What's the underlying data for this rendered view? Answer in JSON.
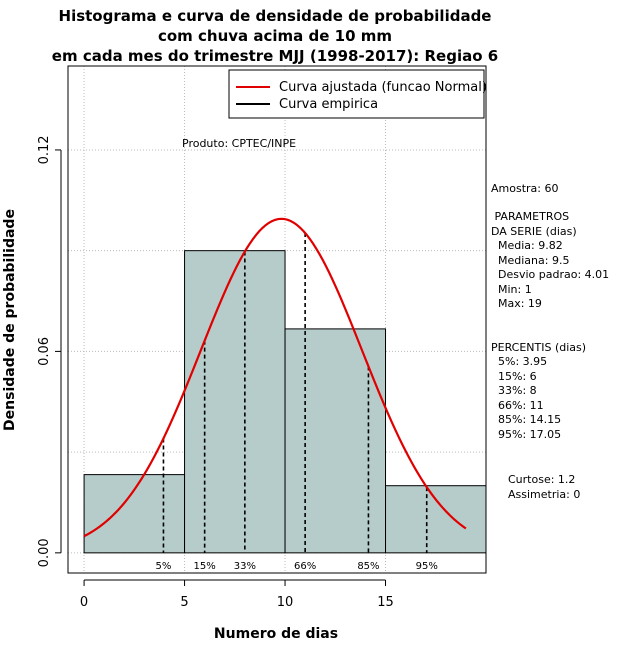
{
  "chart_data": {
    "type": "bar",
    "title_lines": [
      "Histograma e curva de densidade de probabilidade",
      "com chuva acima de 10 mm",
      "em cada mes do trimestre MJJ (1998-2017): Regiao 6"
    ],
    "xlabel": "Numero de dias",
    "ylabel": "Densidade de probabilidade",
    "xlim": [
      -0.8,
      20
    ],
    "ylim": [
      -0.006,
      0.145
    ],
    "x_ticks": [
      "0",
      "5",
      "10",
      "15"
    ],
    "x_tick_values": [
      0,
      5,
      10,
      15
    ],
    "y_ticks": [
      "0.00",
      "0.06",
      "0.12"
    ],
    "y_tick_values": [
      0,
      0.06,
      0.12
    ],
    "grid": true,
    "legend_position": "top-right",
    "legend": [
      {
        "label": "Curva ajustada (funcao Normal)",
        "color": "#e00000"
      },
      {
        "label": "Curva empirica",
        "color": "#000000"
      }
    ],
    "watermark": "Produto: CPTEC/INPE",
    "bins": [
      {
        "x0": 0,
        "x1": 5,
        "density": 0.0233
      },
      {
        "x0": 5,
        "x1": 10,
        "density": 0.09
      },
      {
        "x0": 10,
        "x1": 15,
        "density": 0.0667
      },
      {
        "x0": 15,
        "x1": 20,
        "density": 0.02
      }
    ],
    "bar_color": "#b6cccb",
    "normal_fit": {
      "mean": 9.82,
      "sd": 4.01,
      "x_from": 0,
      "x_to": 19,
      "color": "#e00000"
    },
    "percentile_lines": [
      {
        "label": "5%",
        "x": 3.95
      },
      {
        "label": "15%",
        "x": 6
      },
      {
        "label": "33%",
        "x": 8
      },
      {
        "label": "66%",
        "x": 11
      },
      {
        "label": "85%",
        "x": 14.15
      },
      {
        "label": "95%",
        "x": 17.05
      }
    ]
  },
  "side_panel": {
    "sample": "Amostra: 60",
    "params_title": " PARAMETROS\nDA SERIE (dias)",
    "params": "  Media: 9.82\n  Mediana: 9.5\n  Desvio padrao: 4.01\n  Min: 1\n  Max: 19",
    "percentis_title": "PERCENTIS (dias)",
    "percentis": "  5%: 3.95\n  15%: 6\n  33%: 8\n  66%: 11\n  85%: 14.15\n  95%: 17.05",
    "shape": "Curtose: 1.2\nAssimetria: 0"
  }
}
